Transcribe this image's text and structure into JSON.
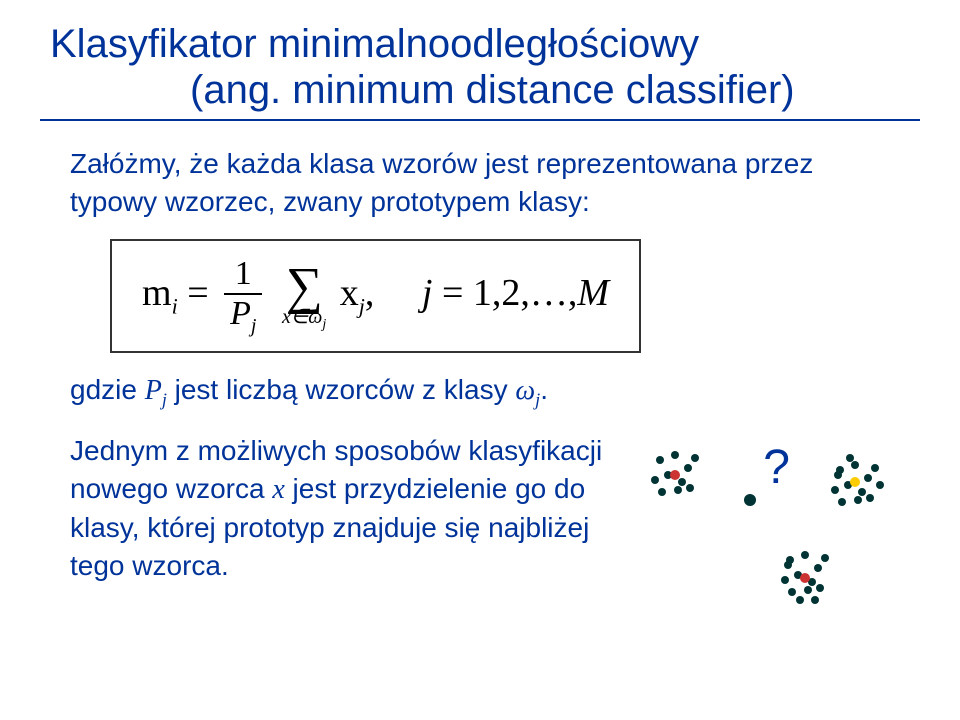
{
  "title": {
    "line1": "Klasyfikator minimalnoodległościowy",
    "line2": "(ang. minimum distance classifier)"
  },
  "paragraph1": "Załóżmy, że każda klasa wzorów jest reprezentowana przez typowy wzorzec, zwany prototypem klasy:",
  "formula": {
    "lhs_m": "m",
    "lhs_sub": "i",
    "eq": "=",
    "frac_num": "1",
    "frac_den_P": "P",
    "frac_den_sub": "j",
    "sigma_sub": "x∈ω",
    "sigma_sub_j": "j",
    "x": "x",
    "x_sub": "j",
    "comma": ",",
    "cond_j": "j",
    "cond_eq": "=",
    "cond_vals": "1,2,…,",
    "cond_M": "M"
  },
  "pj_line_prefix": "gdzie ",
  "pj_symbol": "P",
  "pj_sub": "j",
  "pj_line_mid": " jest liczbą wzorców z klasy ",
  "omega": "ω",
  "omega_sub": "j",
  "pj_line_suffix": ".",
  "paragraph2": "Jednym z możliwych sposobów klasyfikacji nowego wzorca x jest przydzielenie go do klasy, której prototyp znajduje się najbliżej tego wzorca.",
  "question_mark": "?",
  "clusters": {
    "blue": "#003333",
    "red": "#cc3333",
    "yellow": "#ffcc00",
    "r": 4,
    "qdot_r": 6,
    "cluster1": [
      [
        20,
        20
      ],
      [
        35,
        15
      ],
      [
        48,
        28
      ],
      [
        28,
        35
      ],
      [
        42,
        42
      ],
      [
        15,
        40
      ],
      [
        55,
        18
      ],
      [
        38,
        50
      ],
      [
        22,
        52
      ],
      [
        50,
        48
      ]
    ],
    "cluster1_center": [
      35,
      35
    ],
    "cluster2": [
      [
        150,
        120
      ],
      [
        165,
        115
      ],
      [
        178,
        128
      ],
      [
        158,
        135
      ],
      [
        172,
        142
      ],
      [
        145,
        140
      ],
      [
        185,
        118
      ],
      [
        168,
        150
      ],
      [
        152,
        152
      ],
      [
        180,
        148
      ],
      [
        160,
        160
      ],
      [
        148,
        125
      ],
      [
        175,
        160
      ]
    ],
    "cluster2_center": [
      165,
      138
    ],
    "cluster3": [
      [
        200,
        30
      ],
      [
        215,
        25
      ],
      [
        228,
        38
      ],
      [
        208,
        45
      ],
      [
        222,
        52
      ],
      [
        195,
        50
      ],
      [
        235,
        28
      ],
      [
        218,
        60
      ],
      [
        202,
        62
      ],
      [
        230,
        58
      ],
      [
        210,
        18
      ],
      [
        240,
        45
      ],
      [
        198,
        35
      ]
    ],
    "cluster3_center": [
      215,
      42
    ],
    "qdot": [
      110,
      60
    ]
  },
  "colors": {
    "title": "#003399",
    "body": "#003399",
    "formula": "#000000",
    "border": "#333333"
  }
}
